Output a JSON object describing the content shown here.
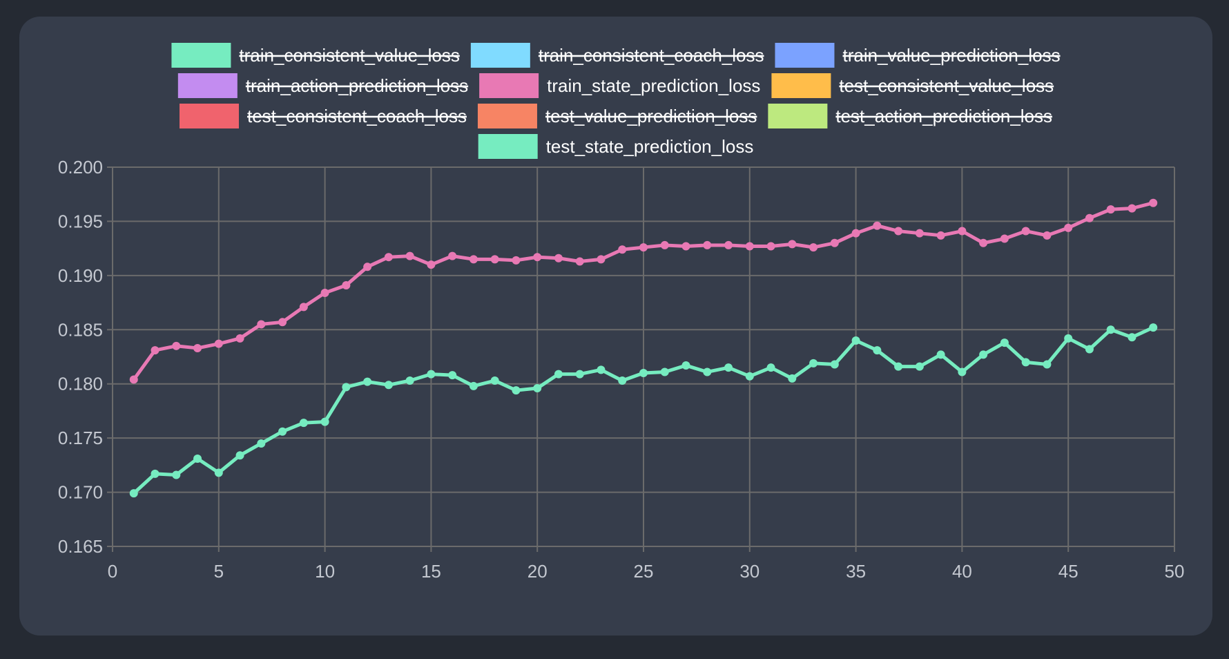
{
  "chart_data": {
    "type": "line",
    "grid": true,
    "legend_position": "top",
    "xlim": [
      0,
      50
    ],
    "ylim": [
      0.165,
      0.2
    ],
    "x_ticks": [
      "0",
      "5",
      "10",
      "15",
      "20",
      "25",
      "30",
      "35",
      "40",
      "45",
      "50"
    ],
    "y_ticks": [
      "0.165",
      "0.170",
      "0.175",
      "0.180",
      "0.185",
      "0.190",
      "0.195",
      "0.200"
    ],
    "legend": [
      {
        "label": "train_consistent_value_loss",
        "color": "#76ecc0",
        "hidden": true
      },
      {
        "label": "train_consistent_coach_loss",
        "color": "#80dbff",
        "hidden": true
      },
      {
        "label": "train_value_prediction_loss",
        "color": "#7ba2ff",
        "hidden": true
      },
      {
        "label": "train_action_prediction_loss",
        "color": "#c38cf0",
        "hidden": true
      },
      {
        "label": "train_state_prediction_loss",
        "color": "#e879b4",
        "hidden": false
      },
      {
        "label": "test_consistent_value_loss",
        "color": "#ffbd4a",
        "hidden": true
      },
      {
        "label": "test_consistent_coach_loss",
        "color": "#f0636d",
        "hidden": true
      },
      {
        "label": "test_value_prediction_loss",
        "color": "#f78464",
        "hidden": true
      },
      {
        "label": "test_action_prediction_loss",
        "color": "#bde97f",
        "hidden": true
      },
      {
        "label": "test_state_prediction_loss",
        "color": "#76ecc0",
        "hidden": false
      }
    ],
    "x": [
      1,
      2,
      3,
      4,
      5,
      6,
      7,
      8,
      9,
      10,
      11,
      12,
      13,
      14,
      15,
      16,
      17,
      18,
      19,
      20,
      21,
      22,
      23,
      24,
      25,
      26,
      27,
      28,
      29,
      30,
      31,
      32,
      33,
      34,
      35,
      36,
      37,
      38,
      39,
      40,
      41,
      42,
      43,
      44,
      45,
      46,
      47,
      48,
      49
    ],
    "series": [
      {
        "name": "train_state_prediction_loss",
        "color": "#e879b4",
        "values": [
          0.1804,
          0.1831,
          0.1835,
          0.1833,
          0.1837,
          0.1842,
          0.1855,
          0.1857,
          0.1871,
          0.1884,
          0.1891,
          0.1908,
          0.1917,
          0.1918,
          0.191,
          0.1918,
          0.1915,
          0.1915,
          0.1914,
          0.1917,
          0.1916,
          0.1913,
          0.1915,
          0.1924,
          0.1926,
          0.1928,
          0.1927,
          0.1928,
          0.1928,
          0.1927,
          0.1927,
          0.1929,
          0.1926,
          0.193,
          0.1939,
          0.1946,
          0.1941,
          0.1939,
          0.1937,
          0.1941,
          0.193,
          0.1934,
          0.1941,
          0.1937,
          0.1944,
          0.1953,
          0.1961,
          0.1962,
          0.1967
        ]
      },
      {
        "name": "test_state_prediction_loss",
        "color": "#76ecc0",
        "values": [
          0.1699,
          0.1717,
          0.1716,
          0.1731,
          0.1718,
          0.1734,
          0.1745,
          0.1756,
          0.1764,
          0.1765,
          0.1797,
          0.1802,
          0.1799,
          0.1803,
          0.1809,
          0.1808,
          0.1798,
          0.1803,
          0.1794,
          0.1796,
          0.1809,
          0.1809,
          0.1813,
          0.1803,
          0.181,
          0.1811,
          0.1817,
          0.1811,
          0.1815,
          0.1807,
          0.1815,
          0.1805,
          0.1819,
          0.1818,
          0.184,
          0.1831,
          0.1816,
          0.1816,
          0.1827,
          0.1811,
          0.1827,
          0.1838,
          0.182,
          0.1818,
          0.1842,
          0.1832,
          0.185,
          0.1843,
          0.1852
        ]
      }
    ]
  }
}
